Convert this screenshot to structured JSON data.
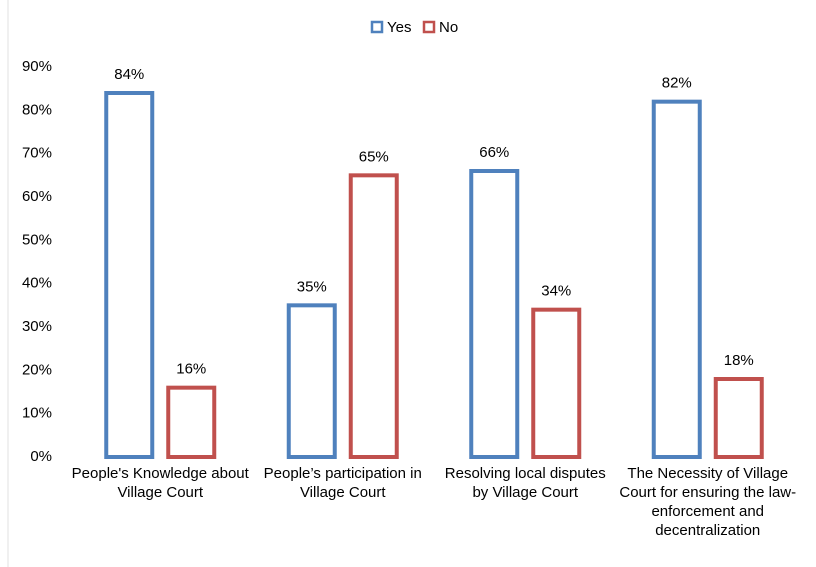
{
  "chart_data": {
    "type": "bar",
    "categories": [
      "People's Knowledge about Village Court",
      "People’s participation in Village Court",
      "Resolving local disputes by Village Court",
      "The Necessity of Village Court for ensuring the law-enforcement and decentralization"
    ],
    "series": [
      {
        "name": "Yes",
        "color": "#4f81bd",
        "values": [
          84,
          35,
          66,
          82
        ],
        "value_labels": [
          "84%",
          "35%",
          "66%",
          "82%"
        ]
      },
      {
        "name": "No",
        "color": "#c0504d",
        "values": [
          16,
          65,
          34,
          18
        ],
        "value_labels": [
          "16%",
          "65%",
          "34%",
          "18%"
        ]
      }
    ],
    "ylim": [
      0,
      90
    ],
    "yticks": [
      {
        "value": 0,
        "label": "0%"
      },
      {
        "value": 10,
        "label": "10%"
      },
      {
        "value": 20,
        "label": "20%"
      },
      {
        "value": 30,
        "label": "30%"
      },
      {
        "value": 40,
        "label": "40%"
      },
      {
        "value": 50,
        "label": "50%"
      },
      {
        "value": 60,
        "label": "60%"
      },
      {
        "value": 70,
        "label": "70%"
      },
      {
        "value": 80,
        "label": "80%"
      },
      {
        "value": 90,
        "label": "90%"
      }
    ],
    "grid": false,
    "legend": "top"
  }
}
